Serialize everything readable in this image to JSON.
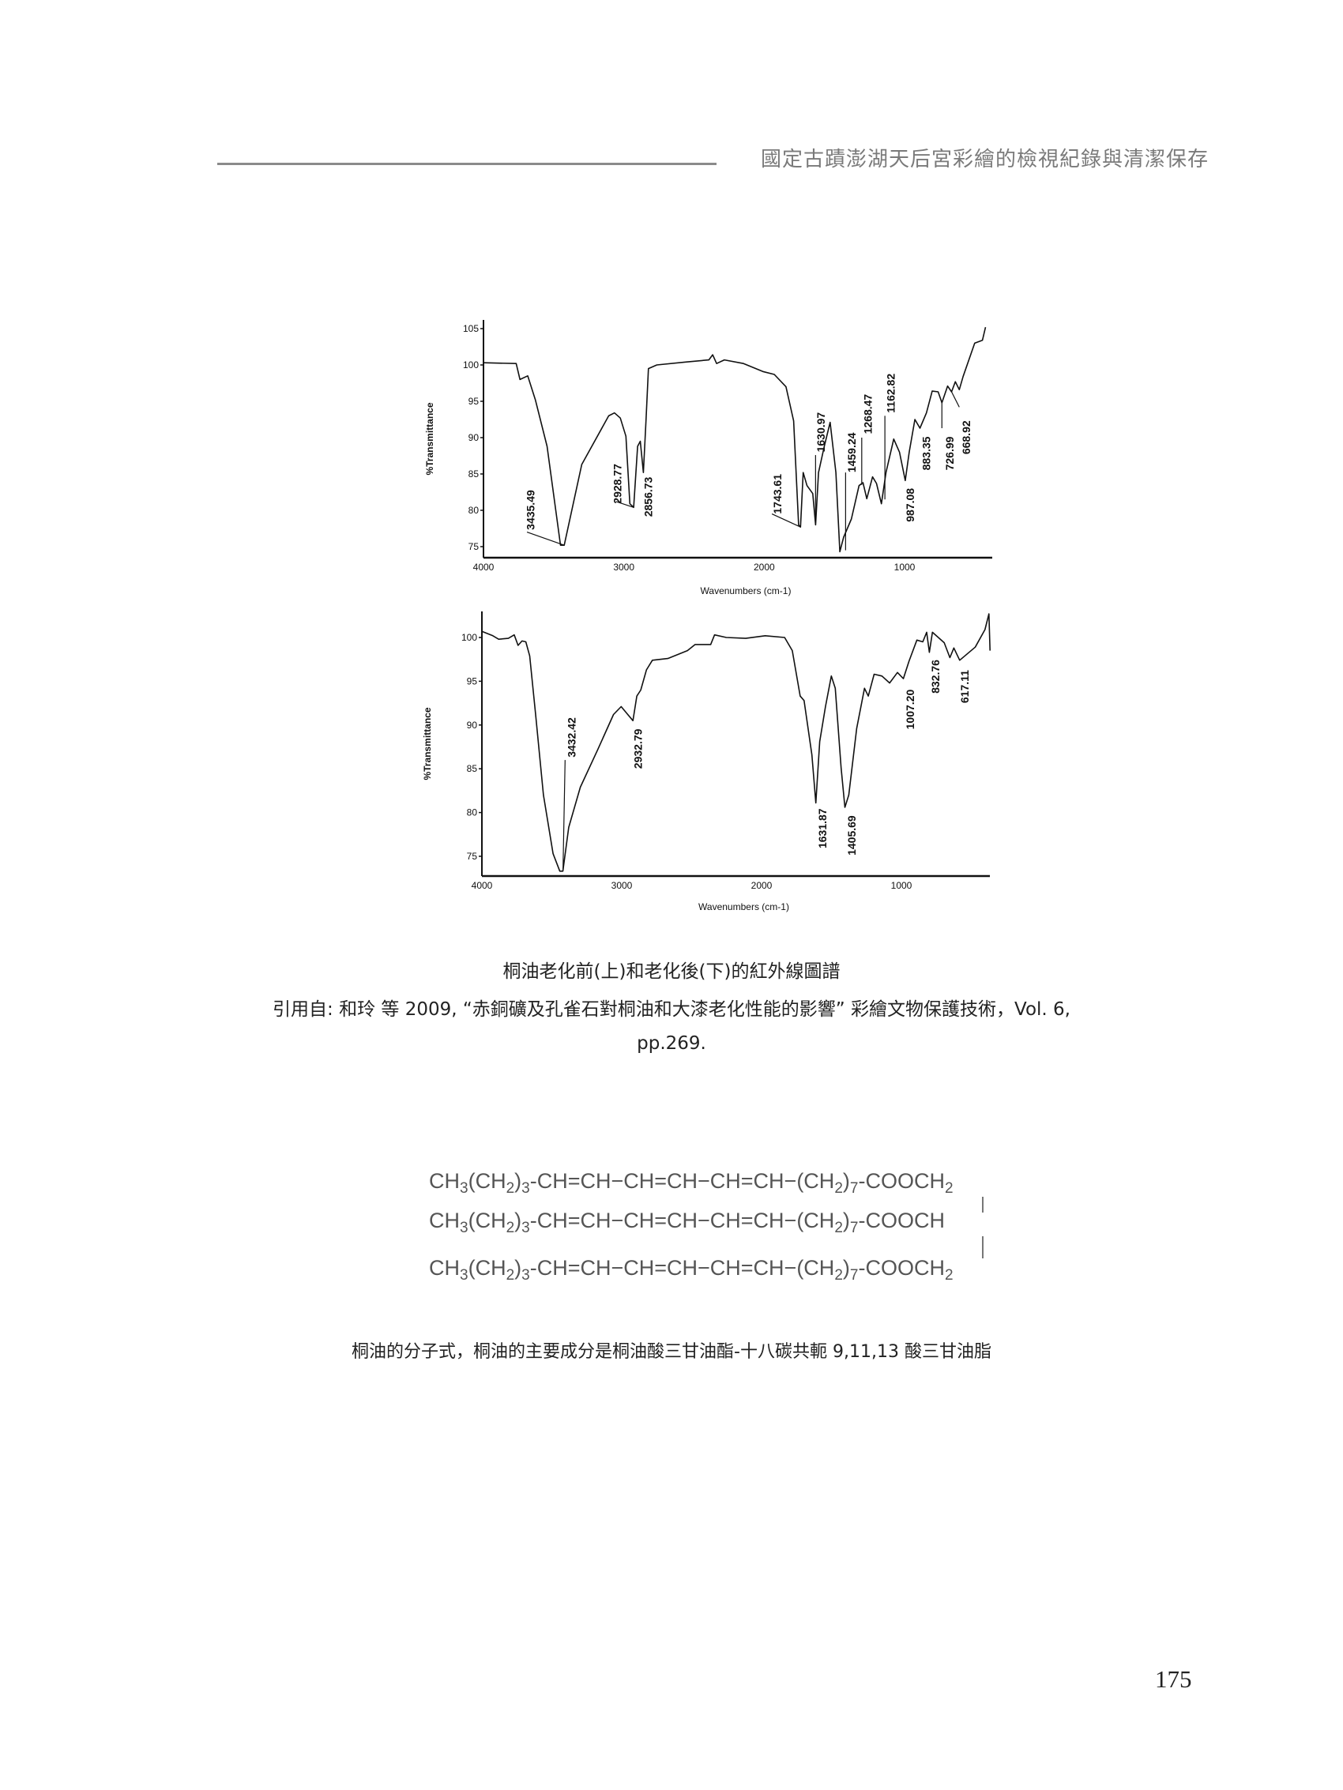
{
  "header": {
    "title": "國定古蹟澎湖天后宮彩繪的檢視紀錄與清潔保存"
  },
  "chart_data": [
    {
      "type": "line",
      "xlabel": "Wavenumbers (cm-1)",
      "ylabel": "%Transmittance",
      "xlim": [
        4000,
        400
      ],
      "x_reversed": true,
      "ylim": [
        73.5,
        105.5
      ],
      "xticks": [
        "4000",
        "3000",
        "2000",
        "1000"
      ],
      "xtick_values": [
        4000,
        3000,
        2000,
        1000
      ],
      "yticks": [
        "105",
        "100",
        "95",
        "90",
        "85",
        "80",
        "75"
      ],
      "ytick_values": [
        105,
        100,
        95,
        90,
        85,
        80,
        75
      ],
      "grid": false,
      "series": [
        {
          "x": [
            4000,
            3767,
            3740,
            3685,
            3630,
            3547,
            3451,
            3425,
            3300,
            3108,
            3067,
            3025,
            2985,
            2957,
            2930,
            2902,
            2883,
            2861,
            2842,
            2825,
            2765,
            2559,
            2394,
            2367,
            2339,
            2284,
            2147,
            2010,
            1928,
            1845,
            1790,
            1755,
            1741,
            1722,
            1695,
            1654,
            1634,
            1613,
            1572,
            1530,
            1489,
            1461,
            1434,
            1379,
            1324,
            1296,
            1269,
            1228,
            1200,
            1165,
            1132,
            1077,
            1036,
            995,
            967,
            926,
            890,
            844,
            803,
            761,
            734,
            693,
            665,
            638,
            610,
            583,
            500,
            445,
            423
          ],
          "y": [
            100.3,
            100.2,
            98,
            98.5,
            95.2,
            88.8,
            75.2,
            75.2,
            86.3,
            93,
            93.4,
            92.7,
            90.2,
            80.9,
            80.4,
            88.8,
            89.5,
            85.2,
            92.3,
            99.5,
            100,
            100.4,
            100.7,
            101.4,
            100.2,
            100.7,
            100.2,
            99.1,
            98.7,
            97,
            92.3,
            78,
            77.7,
            85.2,
            83.4,
            82.3,
            78,
            85.2,
            88.8,
            92.1,
            85.2,
            74.3,
            76.3,
            78.8,
            83.4,
            83.8,
            81.6,
            84.6,
            83.7,
            80.9,
            85.2,
            89.8,
            88,
            84.1,
            88,
            92.5,
            91.3,
            93.4,
            96.4,
            96.3,
            94.8,
            97.1,
            96.3,
            97.7,
            96.6,
            98.4,
            103,
            103.4,
            105.2
          ]
        }
      ],
      "annotations": [
        {
          "text": "3435.49",
          "x": 3657,
          "y": 77.3,
          "leader": [
            [
              3690,
              77.0
            ],
            [
              3425,
              75.2
            ]
          ]
        },
        {
          "text": "2928.77",
          "x": 3039,
          "y": 80.9,
          "leader": [
            [
              3055,
              81.2
            ],
            [
              2930,
              80.4
            ]
          ]
        },
        {
          "text": "2856.73",
          "x": 2820,
          "y": 79.1
        },
        {
          "text": "1743.61",
          "x": 1900,
          "y": 79.5,
          "leader": [
            [
              1945,
              79.5
            ],
            [
              1741,
              77.7
            ]
          ]
        },
        {
          "text": "1630.97",
          "x": 1590,
          "y": 88,
          "leader": [
            [
              1634,
              87.6
            ],
            [
              1634,
              78.3
            ]
          ]
        },
        {
          "text": "1459.24",
          "x": 1370,
          "y": 85.2,
          "leader": [
            [
              1420,
              85.2
            ],
            [
              1420,
              74.5
            ]
          ]
        },
        {
          "text": "1268.47",
          "x": 1255,
          "y": 90.5,
          "leader": [
            [
              1305,
              90
            ],
            [
              1305,
              83.5
            ]
          ]
        },
        {
          "text": "1162.82",
          "x": 1090,
          "y": 93.4,
          "leader": [
            [
              1140,
              93
            ],
            [
              1140,
              81.5
            ]
          ]
        },
        {
          "text": "987.08",
          "x": 953,
          "y": 78.4
        },
        {
          "text": "883.35",
          "x": 838,
          "y": 85.5
        },
        {
          "text": "726.99",
          "x": 673,
          "y": 85.5,
          "leader": [
            [
              734,
              91.3
            ],
            [
              734,
              94.8
            ]
          ]
        },
        {
          "text": "668.92",
          "x": 555,
          "y": 87.7,
          "leader": [
            [
              610,
              94.2
            ],
            [
              665,
              96.3
            ]
          ]
        }
      ]
    },
    {
      "type": "line",
      "xlabel": "Wavenumbers (cm-1)",
      "ylabel": "%Transmittance",
      "xlim": [
        4000,
        400
      ],
      "x_reversed": true,
      "ylim": [
        72.7,
        103
      ],
      "xticks": [
        "4000",
        "3000",
        "2000",
        "1000"
      ],
      "xtick_values": [
        4000,
        3000,
        2000,
        1000
      ],
      "yticks": [
        "100",
        "95",
        "90",
        "85",
        "80",
        "75"
      ],
      "ytick_values": [
        100,
        95,
        90,
        85,
        80,
        75
      ],
      "grid": false,
      "series": [
        {
          "x": [
            4000,
            3922,
            3880,
            3811,
            3769,
            3741,
            3713,
            3686,
            3658,
            3616,
            3560,
            3491,
            3443,
            3421,
            3379,
            3296,
            3171,
            3059,
            3004,
            2962,
            2920,
            2892,
            2864,
            2823,
            2781,
            2670,
            2530,
            2475,
            2364,
            2336,
            2252,
            2113,
            1974,
            1835,
            1780,
            1724,
            1696,
            1640,
            1612,
            1584,
            1543,
            1501,
            1473,
            1431,
            1404,
            1376,
            1320,
            1264,
            1237,
            1195,
            1139,
            1084,
            1028,
            986,
            945,
            889,
            847,
            819,
            800,
            778,
            694,
            653,
            625,
            583,
            472,
            402,
            374,
            366
          ],
          "y": [
            100.7,
            100.2,
            99.8,
            99.9,
            100.3,
            99.1,
            99.6,
            99.5,
            97.9,
            91.2,
            82,
            75.3,
            73.3,
            73.3,
            78.3,
            82.9,
            87.2,
            91.2,
            92.1,
            91.3,
            90.5,
            93.3,
            94,
            96.3,
            97.4,
            97.6,
            98.5,
            99.2,
            99.2,
            100.3,
            100,
            99.9,
            100.2,
            100,
            98.5,
            93.3,
            92.8,
            86.6,
            81.1,
            88.1,
            92.1,
            95.6,
            94.2,
            85.1,
            80.6,
            82,
            89.6,
            94.2,
            93.3,
            95.8,
            95.6,
            94.8,
            96,
            95.3,
            97.3,
            99.7,
            99.5,
            100.6,
            98.3,
            100.6,
            99.4,
            97.7,
            98.8,
            97.4,
            98.9,
            100.9,
            102.7,
            98.5
          ]
        }
      ],
      "annotations": [
        {
          "text": "3432.42",
          "x": 3352,
          "y": 86.3,
          "leader": [
            [
              3405,
              86
            ],
            [
              3420,
              73.4
            ]
          ]
        },
        {
          "text": "2932.79",
          "x": 2878,
          "y": 85
        },
        {
          "text": "1631.87",
          "x": 1557,
          "y": 75.9
        },
        {
          "text": "1405.69",
          "x": 1348,
          "y": 75.1
        },
        {
          "text": "1007.20",
          "x": 930,
          "y": 89.5
        },
        {
          "text": "832.76",
          "x": 750,
          "y": 93.6
        },
        {
          "text": "617.11",
          "x": 541,
          "y": 92.5
        }
      ]
    }
  ],
  "captions": {
    "figure_title": "桐油老化前(上)和老化後(下)的紅外線圖譜",
    "citation_line1": "引用自: 和玲 等 2009, “赤銅礦及孔雀石對桐油和大漆老化性能的影響” 彩繪文物保護技術，Vol. 6,",
    "citation_line2": "pp.269.",
    "formula_caption": "桐油的分子式，桐油的主要成分是桐油酸三甘油酯-十八碳共軛 9,11,13 酸三甘油脂"
  },
  "formula": {
    "rows": [
      [
        [
          "CH",
          ""
        ],
        [
          "3",
          "sub"
        ],
        [
          "(CH",
          ""
        ],
        [
          "2",
          "sub"
        ],
        [
          ")",
          ""
        ],
        [
          "3",
          "sub"
        ],
        [
          "-CH=CH−CH=CH−CH=CH−(CH",
          ""
        ],
        [
          "2",
          "sub"
        ],
        [
          ")",
          ""
        ],
        [
          "7",
          "sub"
        ],
        [
          "-COOCH",
          ""
        ],
        [
          "2",
          "sub"
        ]
      ],
      [
        [
          "CH",
          ""
        ],
        [
          "3",
          "sub"
        ],
        [
          "(CH",
          ""
        ],
        [
          "2",
          "sub"
        ],
        [
          ")",
          ""
        ],
        [
          "3",
          "sub"
        ],
        [
          "-CH=CH−CH=CH−CH=CH−(CH",
          ""
        ],
        [
          "2",
          "sub"
        ],
        [
          ")",
          ""
        ],
        [
          "7",
          "sub"
        ],
        [
          "-COOCH",
          ""
        ]
      ],
      [
        [
          "CH",
          ""
        ],
        [
          "3",
          "sub"
        ],
        [
          "(CH",
          ""
        ],
        [
          "2",
          "sub"
        ],
        [
          ")",
          ""
        ],
        [
          "3",
          "sub"
        ],
        [
          "-CH=CH−CH=CH−CH=CH−(CH",
          ""
        ],
        [
          "2",
          "sub"
        ],
        [
          ")",
          ""
        ],
        [
          "7",
          "sub"
        ],
        [
          "-COOCH",
          ""
        ],
        [
          "2",
          "sub"
        ]
      ]
    ]
  },
  "page_number": "175"
}
